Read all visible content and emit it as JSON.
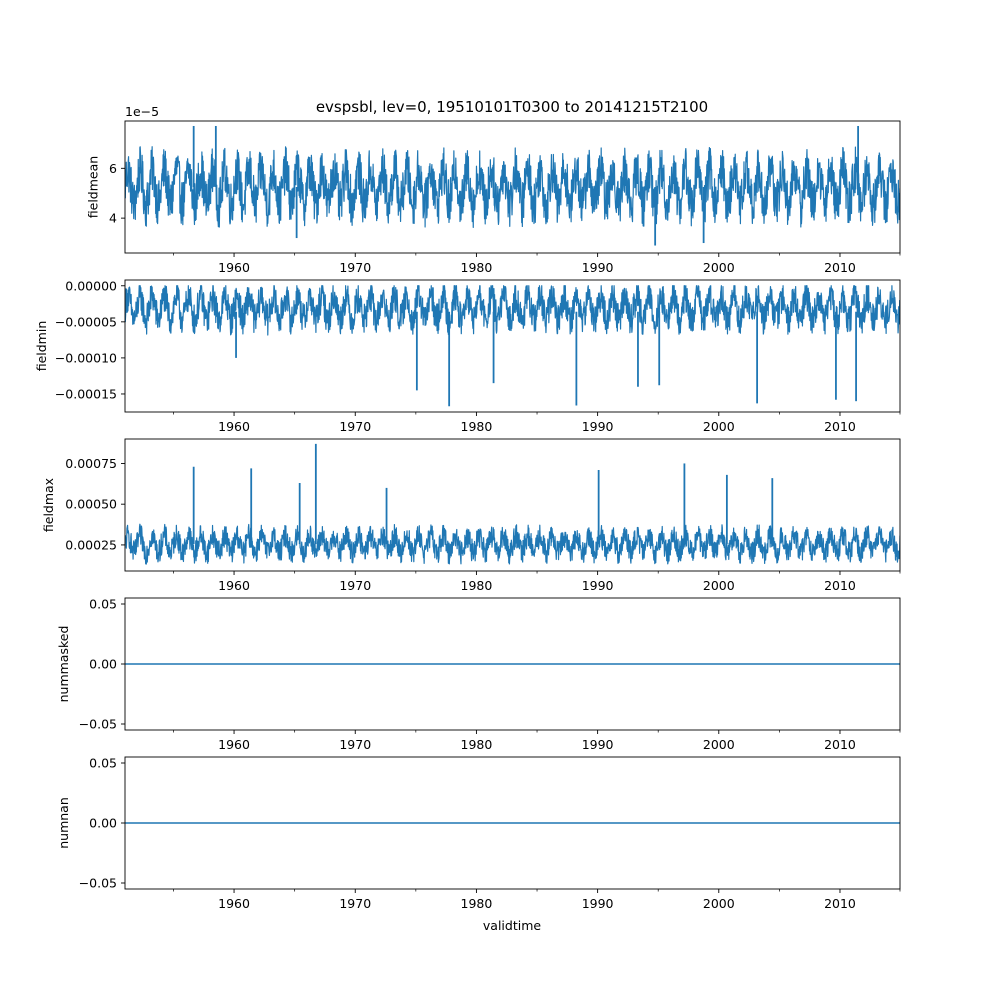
{
  "chart_data": {
    "type": "line",
    "title": "evspsbl, lev=0, 19510101T0300 to 20141215T2100",
    "xlabel": "validtime",
    "x_range": [
      "1951-01-01",
      "2014-12-15"
    ],
    "x_tick_labels": [
      "1960",
      "1970",
      "1980",
      "1990",
      "2000",
      "2010"
    ],
    "series_color": "#1f77b4",
    "grid": false,
    "subplots": [
      {
        "ylabel": "fieldmean",
        "offset_text": "1e−5",
        "ylim": [
          2.6e-05,
          7.9e-05
        ],
        "y_ticks": [
          4e-05,
          6e-05
        ],
        "y_tick_labels": [
          "4",
          "6"
        ],
        "summary": {
          "typical_low": 4e-05,
          "typical_high": 6.5e-05,
          "min": 2.9e-05,
          "max": 7.7e-05
        },
        "seasonal_cycle": true,
        "extremes": [
          {
            "x": "1965-03-01",
            "y": 3.2e-05
          },
          {
            "x": "1994-10-01",
            "y": 2.9e-05
          },
          {
            "x": "1998-10-01",
            "y": 3e-05
          },
          {
            "x": "1956-09-01",
            "y": 7.7e-05
          },
          {
            "x": "1958-07-01",
            "y": 7.7e-05
          },
          {
            "x": "2011-07-01",
            "y": 7.7e-05
          }
        ]
      },
      {
        "ylabel": "fieldmin",
        "ylim": [
          -0.000175,
          8e-06
        ],
        "y_ticks": [
          -0.00015,
          -0.0001,
          -5e-05,
          0.0
        ],
        "y_tick_labels": [
          "−0.00015",
          "−0.00010",
          "−0.00005",
          "0.00000"
        ],
        "summary": {
          "typical_low": -6e-05,
          "typical_high": -2e-06,
          "min": -0.000167,
          "max": 0.0
        },
        "seasonal_cycle": true,
        "extremes": [
          {
            "x": "1960-03-01",
            "y": -0.0001
          },
          {
            "x": "1975-02-01",
            "y": -0.000145
          },
          {
            "x": "1977-10-01",
            "y": -0.000167
          },
          {
            "x": "1981-06-01",
            "y": -0.000135
          },
          {
            "x": "1988-04-01",
            "y": -0.000166
          },
          {
            "x": "1993-05-01",
            "y": -0.00014
          },
          {
            "x": "1995-02-01",
            "y": -0.000138
          },
          {
            "x": "2003-03-01",
            "y": -0.000163
          },
          {
            "x": "2009-09-01",
            "y": -0.000158
          },
          {
            "x": "2011-05-01",
            "y": -0.00016
          }
        ]
      },
      {
        "ylabel": "fieldmax",
        "ylim": [
          9e-05,
          0.0009
        ],
        "y_ticks": [
          0.00025,
          0.0005,
          0.00075
        ],
        "y_tick_labels": [
          "0.00025",
          "0.00050",
          "0.00075"
        ],
        "summary": {
          "typical_low": 0.00016,
          "typical_high": 0.00035,
          "min": 0.00013,
          "max": 0.00087
        },
        "seasonal_cycle": true,
        "extremes": [
          {
            "x": "1956-09-01",
            "y": 0.00073
          },
          {
            "x": "1961-06-01",
            "y": 0.00072
          },
          {
            "x": "1965-06-01",
            "y": 0.00063
          },
          {
            "x": "1966-10-01",
            "y": 0.00087
          },
          {
            "x": "1972-08-01",
            "y": 0.0006
          },
          {
            "x": "1990-02-01",
            "y": 0.00071
          },
          {
            "x": "1997-03-01",
            "y": 0.00075
          },
          {
            "x": "2000-09-01",
            "y": 0.00068
          },
          {
            "x": "2004-06-01",
            "y": 0.00066
          }
        ]
      },
      {
        "ylabel": "nummasked",
        "ylim": [
          -0.055,
          0.055
        ],
        "y_ticks": [
          -0.05,
          0.0,
          0.05
        ],
        "y_tick_labels": [
          "−0.05",
          "0.00",
          "0.05"
        ],
        "constant": 0
      },
      {
        "ylabel": "numnan",
        "ylim": [
          -0.055,
          0.055
        ],
        "y_ticks": [
          -0.05,
          0.0,
          0.05
        ],
        "y_tick_labels": [
          "−0.05",
          "0.00",
          "0.05"
        ],
        "constant": 0
      }
    ]
  }
}
